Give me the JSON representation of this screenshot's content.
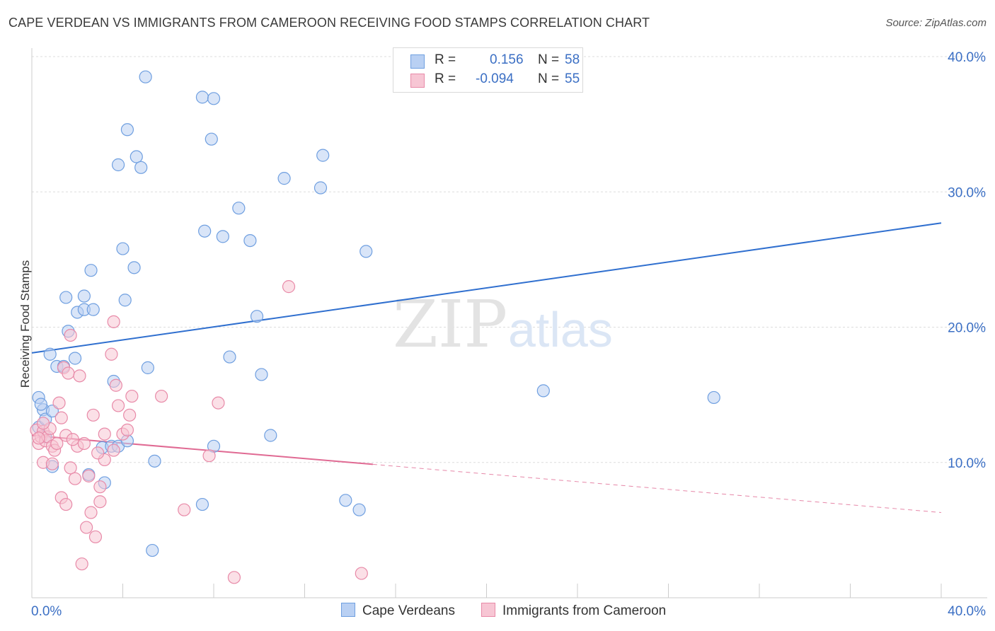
{
  "title": "CAPE VERDEAN VS IMMIGRANTS FROM CAMEROON RECEIVING FOOD STAMPS CORRELATION CHART",
  "source": "Source: ZipAtlas.com",
  "watermark": {
    "zip": "ZIP",
    "atlas": "atlas"
  },
  "legend_top": {
    "series1": {
      "r_label": "R =",
      "r_value": "0.156",
      "n_label": "N =",
      "n_value": "58"
    },
    "series2": {
      "r_label": "R =",
      "r_value": "-0.094",
      "n_label": "N =",
      "n_value": "55"
    }
  },
  "chart_data": {
    "type": "scatter",
    "title": "CAPE VERDEAN VS IMMIGRANTS FROM CAMEROON RECEIVING FOOD STAMPS CORRELATION CHART",
    "xlabel": "",
    "ylabel": "Receiving Food Stamps",
    "xlim": [
      0,
      40
    ],
    "ylim": [
      0,
      40
    ],
    "x_tick_labels": [
      "0.0%",
      "40.0%"
    ],
    "y_tick_labels": [
      "10.0%",
      "20.0%",
      "30.0%",
      "40.0%"
    ],
    "y_ticks": [
      10,
      20,
      30,
      40
    ],
    "grid": true,
    "series": [
      {
        "name": "Cape Verdeans",
        "color": "#6f9fe0",
        "fill": "#b9d0f3",
        "r": 0.156,
        "n": 58,
        "trend": {
          "x0": 0,
          "y0": 18.1,
          "x1": 40,
          "y1": 27.7,
          "dashed_from": null
        },
        "points": [
          [
            0.3,
            14.8
          ],
          [
            0.5,
            13.9
          ],
          [
            0.3,
            12.6
          ],
          [
            0.6,
            13.2
          ],
          [
            0.9,
            13.8
          ],
          [
            0.6,
            11.9
          ],
          [
            0.9,
            9.7
          ],
          [
            0.8,
            18.0
          ],
          [
            1.1,
            17.1
          ],
          [
            1.4,
            17.1
          ],
          [
            1.9,
            17.7
          ],
          [
            1.6,
            19.7
          ],
          [
            2.0,
            21.1
          ],
          [
            2.3,
            21.3
          ],
          [
            2.7,
            21.3
          ],
          [
            1.5,
            22.2
          ],
          [
            2.3,
            22.3
          ],
          [
            2.6,
            24.2
          ],
          [
            3.1,
            11.1
          ],
          [
            3.2,
            8.5
          ],
          [
            2.5,
            9.1
          ],
          [
            3.5,
            11.2
          ],
          [
            3.8,
            11.2
          ],
          [
            4.2,
            11.6
          ],
          [
            3.6,
            16.0
          ],
          [
            4.1,
            22.0
          ],
          [
            4.0,
            25.8
          ],
          [
            4.5,
            24.4
          ],
          [
            5.1,
            17.0
          ],
          [
            5.4,
            10.1
          ],
          [
            4.6,
            32.6
          ],
          [
            4.8,
            31.8
          ],
          [
            3.8,
            32.0
          ],
          [
            4.2,
            34.6
          ],
          [
            5.0,
            38.5
          ],
          [
            5.3,
            3.5
          ],
          [
            7.5,
            37.0
          ],
          [
            8.0,
            36.9
          ],
          [
            7.9,
            33.9
          ],
          [
            9.1,
            28.8
          ],
          [
            8.4,
            26.7
          ],
          [
            7.6,
            27.1
          ],
          [
            9.6,
            26.4
          ],
          [
            8.7,
            17.8
          ],
          [
            9.9,
            20.8
          ],
          [
            10.1,
            16.5
          ],
          [
            10.5,
            12.0
          ],
          [
            8.0,
            11.2
          ],
          [
            7.5,
            6.9
          ],
          [
            11.1,
            31.0
          ],
          [
            12.7,
            30.3
          ],
          [
            12.8,
            32.7
          ],
          [
            14.7,
            25.6
          ],
          [
            13.8,
            7.2
          ],
          [
            14.4,
            6.5
          ],
          [
            22.5,
            15.3
          ],
          [
            30.0,
            14.8
          ],
          [
            0.4,
            14.3
          ]
        ]
      },
      {
        "name": "Immigrants from Cameroon",
        "color": "#e88aa8",
        "fill": "#f7c6d4",
        "r": -0.094,
        "n": 55,
        "trend": {
          "x0": 0,
          "y0": 12.0,
          "x1": 40,
          "y1": 6.3,
          "dashed_from": 15.0
        },
        "points": [
          [
            0.2,
            12.4
          ],
          [
            0.3,
            11.4
          ],
          [
            0.4,
            11.9
          ],
          [
            0.5,
            12.3
          ],
          [
            0.6,
            11.6
          ],
          [
            0.7,
            11.9
          ],
          [
            0.8,
            12.5
          ],
          [
            0.9,
            11.2
          ],
          [
            1.0,
            10.9
          ],
          [
            1.1,
            11.4
          ],
          [
            0.5,
            10.0
          ],
          [
            0.9,
            9.9
          ],
          [
            1.2,
            14.4
          ],
          [
            1.3,
            13.3
          ],
          [
            1.5,
            12.0
          ],
          [
            1.7,
            9.6
          ],
          [
            1.9,
            8.8
          ],
          [
            1.3,
            7.4
          ],
          [
            1.5,
            6.9
          ],
          [
            2.0,
            11.2
          ],
          [
            2.3,
            11.4
          ],
          [
            2.5,
            9.0
          ],
          [
            2.6,
            6.3
          ],
          [
            2.4,
            5.2
          ],
          [
            2.8,
            4.5
          ],
          [
            2.2,
            2.5
          ],
          [
            3.0,
            7.1
          ],
          [
            3.2,
            12.1
          ],
          [
            3.2,
            10.2
          ],
          [
            3.6,
            10.9
          ],
          [
            3.7,
            15.7
          ],
          [
            3.8,
            14.2
          ],
          [
            4.0,
            12.1
          ],
          [
            4.2,
            12.4
          ],
          [
            4.3,
            13.5
          ],
          [
            4.4,
            14.9
          ],
          [
            3.5,
            18.0
          ],
          [
            3.6,
            20.4
          ],
          [
            1.7,
            19.4
          ],
          [
            1.4,
            17.0
          ],
          [
            1.6,
            16.6
          ],
          [
            2.1,
            16.4
          ],
          [
            5.7,
            14.9
          ],
          [
            6.7,
            6.5
          ],
          [
            8.2,
            14.4
          ],
          [
            7.8,
            10.5
          ],
          [
            8.9,
            1.5
          ],
          [
            11.3,
            23.0
          ],
          [
            14.5,
            1.8
          ],
          [
            2.7,
            13.5
          ],
          [
            3.0,
            8.2
          ],
          [
            0.3,
            11.8
          ],
          [
            0.5,
            12.9
          ],
          [
            1.8,
            11.7
          ],
          [
            2.9,
            10.7
          ]
        ]
      }
    ]
  },
  "legend_bottom": {
    "item1": "Cape Verdeans",
    "item2": "Immigrants from Cameroon"
  }
}
